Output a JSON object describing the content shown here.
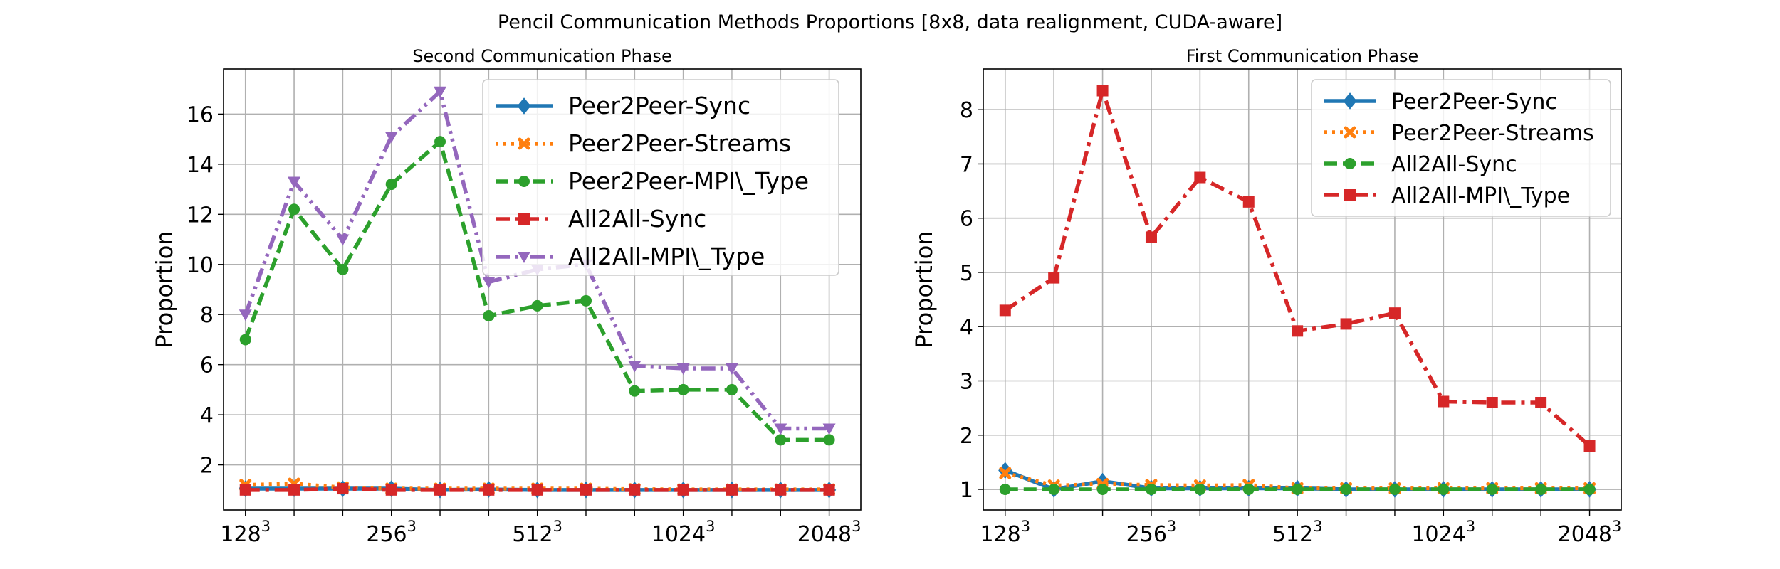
{
  "figure": {
    "suptitle": "Pencil Communication Methods Proportions [8x8, data realignment, CUDA-aware]"
  },
  "colors": {
    "blue": "#1f77b4",
    "orange": "#ff7f0e",
    "green": "#2ca02c",
    "red": "#d62728",
    "purple": "#9467bd"
  },
  "chart_data": [
    {
      "type": "line",
      "title": "Second Communication Phase",
      "xlabel": "",
      "ylabel": "Proportion",
      "x": [
        1,
        2,
        3,
        4,
        5,
        6,
        7,
        8,
        9,
        10,
        11,
        12,
        13
      ],
      "xticks": [
        {
          "x": 1,
          "base": "128",
          "exp": "3"
        },
        {
          "x": 4,
          "base": "256",
          "exp": "3"
        },
        {
          "x": 7,
          "base": "512",
          "exp": "3"
        },
        {
          "x": 10,
          "base": "1024",
          "exp": "3"
        },
        {
          "x": 13,
          "base": "2048",
          "exp": "3"
        }
      ],
      "xlim": [
        0.55,
        13.65
      ],
      "ylim": [
        0.2,
        17.8
      ],
      "yticks": [
        2,
        4,
        6,
        8,
        10,
        12,
        14,
        16
      ],
      "grid": true,
      "legend_position": "top-right",
      "series": [
        {
          "name": "Peer2Peer-Sync",
          "color": "blue",
          "dash": "solid",
          "marker": "diamond",
          "values": [
            1.05,
            1.05,
            1.05,
            1.05,
            1.0,
            1.02,
            1.0,
            1.0,
            1.0,
            1.0,
            1.0,
            1.0,
            1.0
          ]
        },
        {
          "name": "Peer2Peer-Streams",
          "color": "orange",
          "dash": "dotted",
          "marker": "x",
          "values": [
            1.2,
            1.25,
            1.1,
            1.05,
            1.05,
            1.05,
            1.05,
            1.05,
            1.03,
            1.02,
            1.02,
            1.02,
            1.02
          ]
        },
        {
          "name": "Peer2Peer-MPI\\_Type",
          "color": "green",
          "dash": "dashed",
          "marker": "circle",
          "values": [
            7.0,
            12.2,
            9.8,
            13.2,
            14.9,
            7.95,
            8.35,
            8.55,
            4.95,
            5.0,
            5.0,
            3.0,
            3.0
          ]
        },
        {
          "name": "All2All-Sync",
          "color": "red",
          "dash": "dashdot",
          "marker": "square",
          "values": [
            1.0,
            1.0,
            1.05,
            1.0,
            1.0,
            1.0,
            1.0,
            1.0,
            1.0,
            1.0,
            1.0,
            1.0,
            1.0
          ]
        },
        {
          "name": "All2All-MPI\\_Type",
          "color": "purple",
          "dash": "dashdotdot",
          "marker": "triangle-down",
          "values": [
            8.0,
            13.3,
            11.0,
            15.1,
            16.9,
            9.3,
            9.8,
            10.0,
            5.95,
            5.85,
            5.85,
            3.45,
            3.45
          ]
        }
      ]
    },
    {
      "type": "line",
      "title": "First Communication Phase",
      "xlabel": "",
      "ylabel": "Proportion",
      "x": [
        1,
        2,
        3,
        4,
        5,
        6,
        7,
        8,
        9,
        10,
        11,
        12,
        13
      ],
      "xticks": [
        {
          "x": 1,
          "base": "128",
          "exp": "3"
        },
        {
          "x": 4,
          "base": "256",
          "exp": "3"
        },
        {
          "x": 7,
          "base": "512",
          "exp": "3"
        },
        {
          "x": 10,
          "base": "1024",
          "exp": "3"
        },
        {
          "x": 13,
          "base": "2048",
          "exp": "3"
        }
      ],
      "xlim": [
        0.55,
        13.65
      ],
      "ylim": [
        0.62,
        8.75
      ],
      "yticks": [
        1,
        2,
        3,
        4,
        5,
        6,
        7,
        8
      ],
      "grid": true,
      "legend_position": "top-right",
      "series": [
        {
          "name": "Peer2Peer-Sync",
          "color": "blue",
          "dash": "solid",
          "marker": "diamond",
          "values": [
            1.35,
            1.0,
            1.15,
            1.02,
            1.02,
            1.02,
            1.02,
            1.0,
            1.0,
            1.0,
            1.0,
            1.0,
            1.0
          ]
        },
        {
          "name": "Peer2Peer-Streams",
          "color": "orange",
          "dash": "dotted",
          "marker": "x",
          "values": [
            1.3,
            1.07,
            1.1,
            1.08,
            1.07,
            1.08,
            1.02,
            1.02,
            1.02,
            1.02,
            1.02,
            1.02,
            1.02
          ]
        },
        {
          "name": "All2All-Sync",
          "color": "green",
          "dash": "dashed",
          "marker": "circle",
          "values": [
            1.0,
            1.0,
            1.0,
            1.0,
            1.0,
            1.0,
            1.0,
            1.0,
            1.0,
            1.0,
            1.0,
            1.0,
            1.0
          ]
        },
        {
          "name": "All2All-MPI\\_Type",
          "color": "red",
          "dash": "dashdot",
          "marker": "square",
          "values": [
            4.3,
            4.9,
            8.35,
            5.65,
            6.75,
            6.3,
            3.92,
            4.05,
            4.25,
            2.62,
            2.6,
            2.6,
            1.8
          ]
        }
      ]
    }
  ]
}
